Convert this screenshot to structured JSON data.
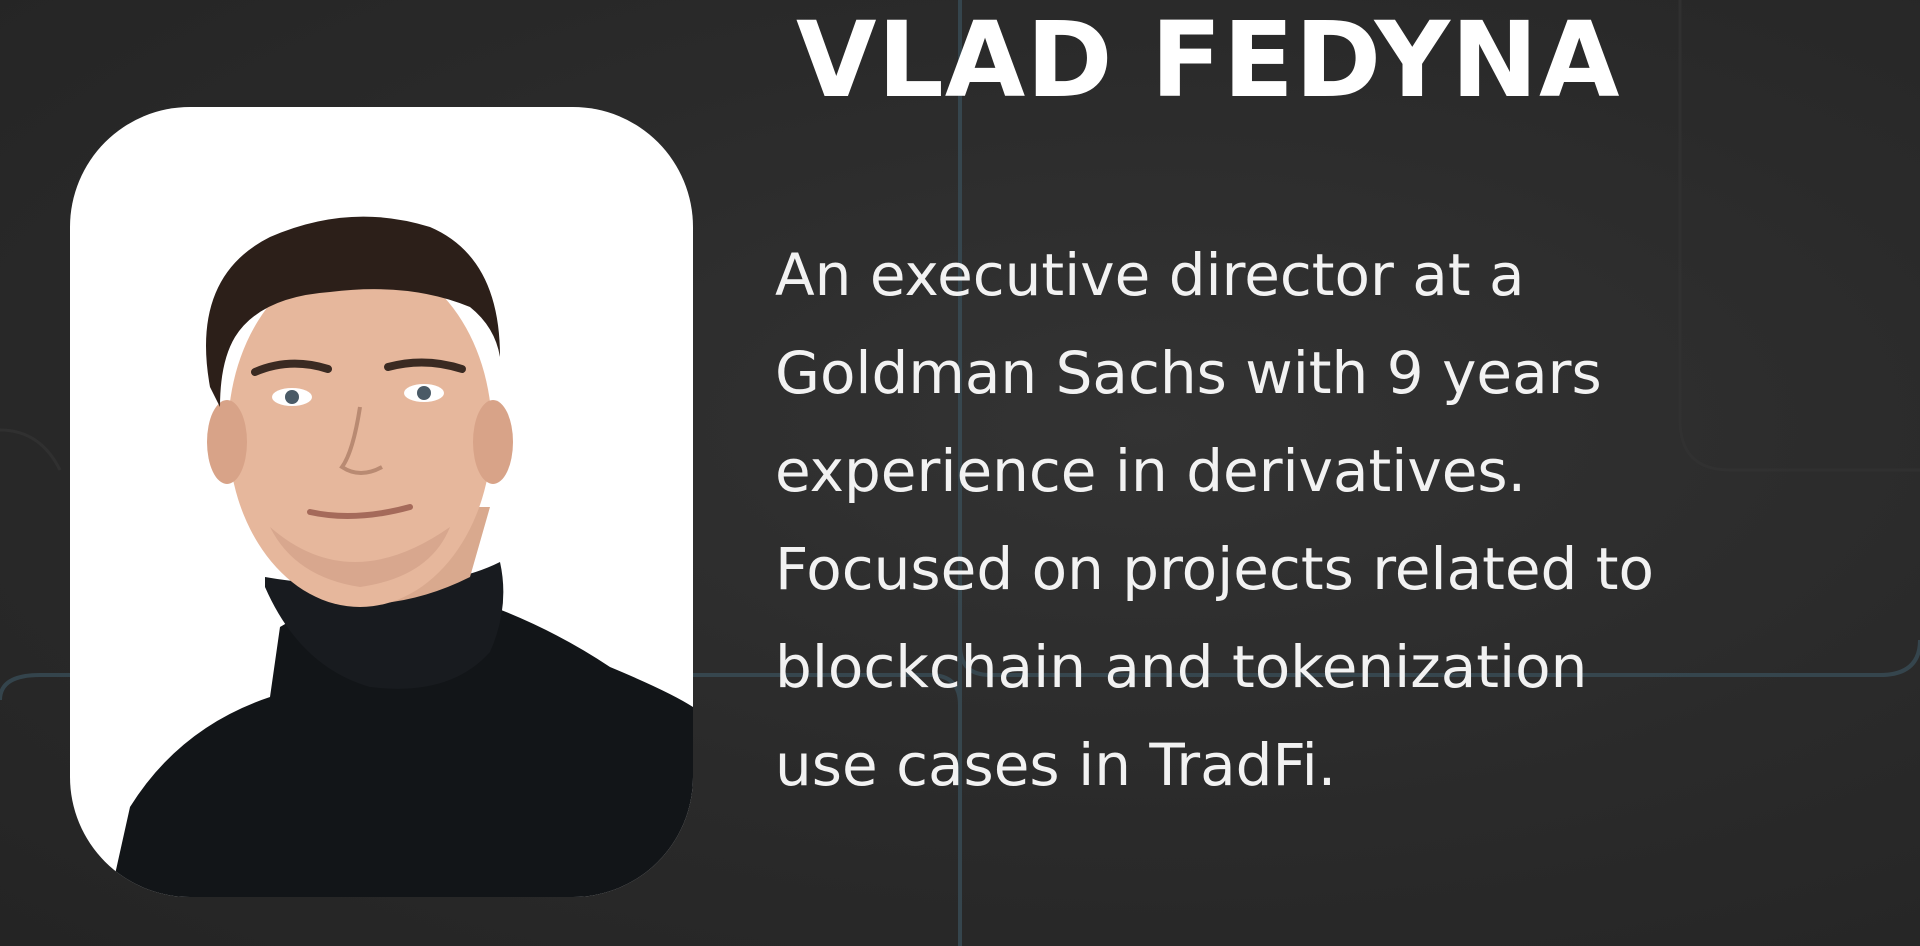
{
  "profile": {
    "name": "VLAD FEDYNA",
    "photo_icon": "portrait-photo",
    "bio_lines": [
      "An executive director at a",
      "Goldman Sachs with 9 years",
      "experience in derivatives.",
      "Focused on projects related to",
      "blockchain and tokenization",
      "use cases in TradFi."
    ]
  },
  "colors": {
    "background": "#2b2b2b",
    "accent_lines": "#3d5560",
    "text": "#ffffff",
    "card": "#ffffff"
  }
}
